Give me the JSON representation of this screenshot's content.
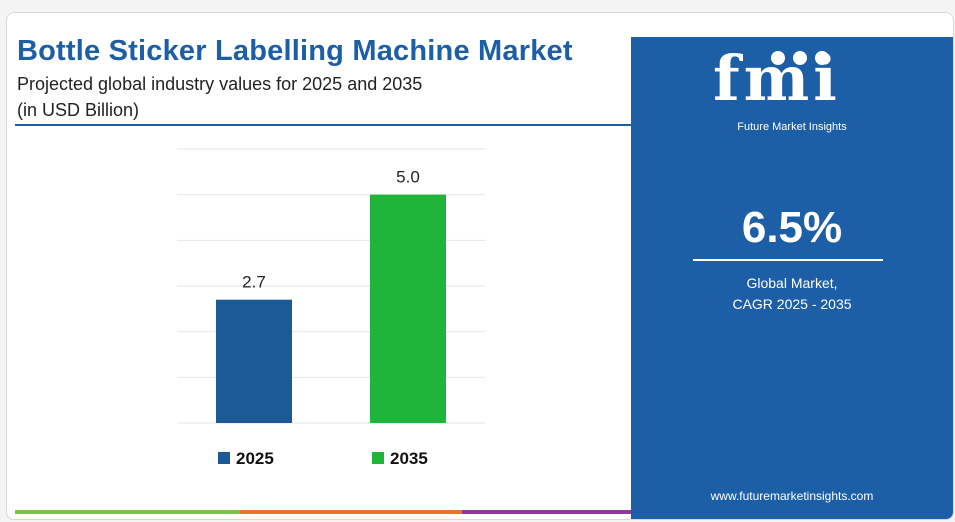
{
  "title": "Bottle Sticker Labelling Machine Market",
  "subtitle_line1": "Projected global industry values for 2025 and 2035",
  "subtitle_line2": "(in USD Billion)",
  "brand": {
    "logo": "fmi",
    "name": "Future Market Insights",
    "website": "www.futuremarketinsights.com"
  },
  "cagr": {
    "value": "6.5%",
    "label_line1": "Global Market,",
    "label_line2": "CAGR 2025 - 2035"
  },
  "colors": {
    "brand_blue": "#1d5fa6",
    "bar_2025": "#1b5a96",
    "bar_2035": "#1fb43a",
    "strip": [
      "#7fc241",
      "#e8742c",
      "#8e3a9a"
    ]
  },
  "chart_data": {
    "type": "bar",
    "categories": [
      "2025",
      "2035"
    ],
    "values": [
      2.7,
      5.0
    ],
    "value_labels": [
      "2.7",
      "5.0"
    ],
    "title": "",
    "xlabel": "",
    "ylabel": "",
    "ylim": [
      0,
      6
    ],
    "grid": true,
    "legend": [
      "2025",
      "2035"
    ],
    "legend_position": "bottom"
  }
}
